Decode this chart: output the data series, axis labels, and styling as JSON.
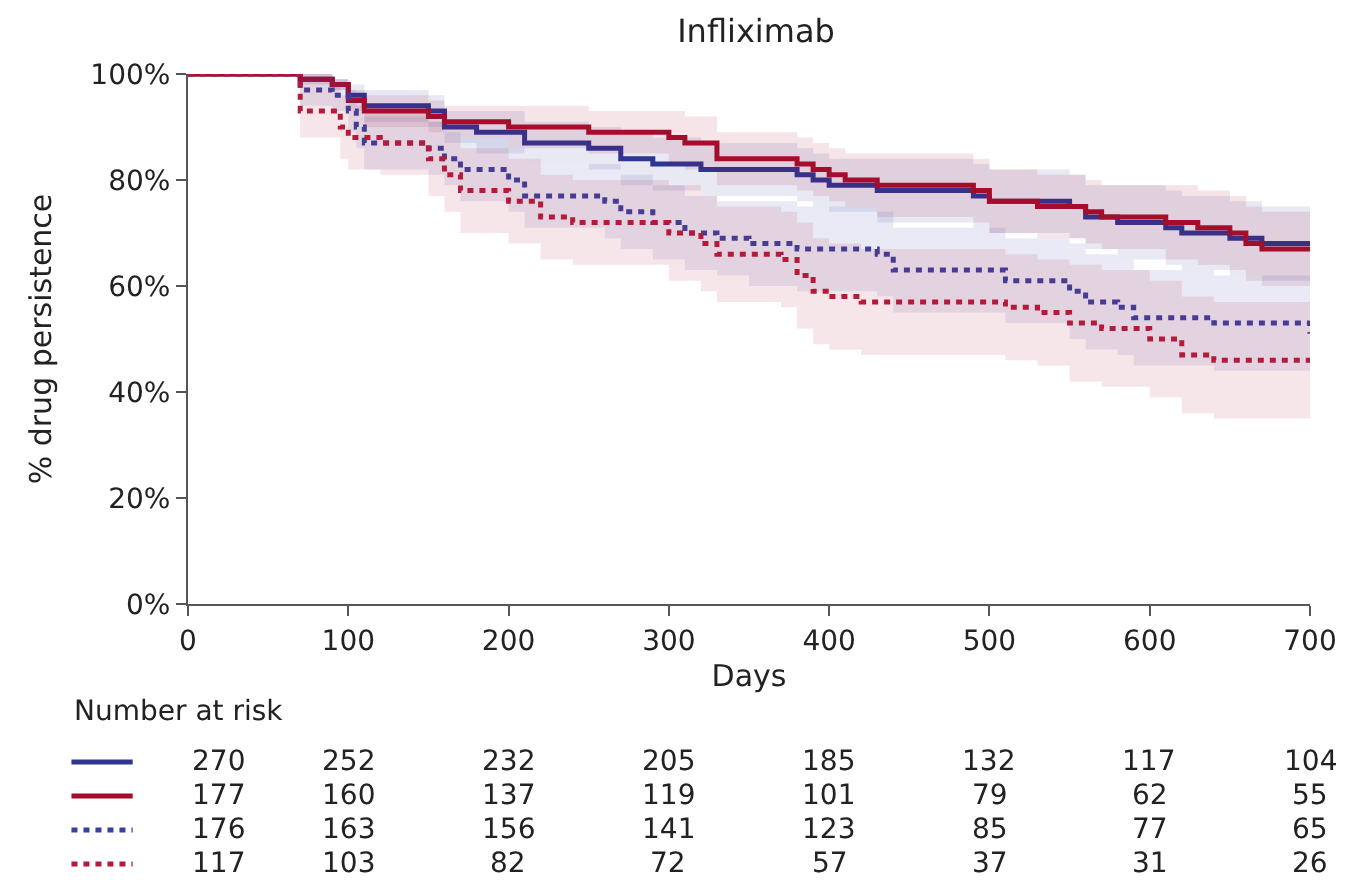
{
  "chart_data": {
    "type": "step",
    "title": "Infliximab",
    "xlabel": "Days",
    "ylabel": "% drug persistence",
    "xlim": [
      0,
      700
    ],
    "xticks": [
      0,
      100,
      200,
      300,
      400,
      500,
      600,
      700
    ],
    "ylim": [
      0,
      100
    ],
    "yticks": [
      {
        "value": 0,
        "label": "0%"
      },
      {
        "value": 20,
        "label": "20%"
      },
      {
        "value": 40,
        "label": "40%"
      },
      {
        "value": 60,
        "label": "60%"
      },
      {
        "value": 80,
        "label": "80%"
      },
      {
        "value": 100,
        "label": "100%"
      }
    ],
    "series": [
      {
        "color": "#2e3592",
        "line_style": "solid",
        "x": [
          0,
          70,
          90,
          100,
          110,
          150,
          160,
          180,
          210,
          250,
          270,
          290,
          320,
          380,
          390,
          400,
          430,
          480,
          490,
          500,
          550,
          560,
          580,
          610,
          620,
          650,
          670,
          700
        ],
        "values": [
          100,
          99,
          98,
          96,
          94,
          93,
          90,
          89,
          87,
          86,
          84,
          83,
          82,
          81,
          80,
          79,
          78,
          78,
          77,
          76,
          75,
          73,
          72,
          71,
          70,
          69,
          68,
          68
        ],
        "lower": [
          100,
          98,
          97,
          94,
          91,
          90,
          87,
          85,
          83,
          82,
          79,
          78,
          77,
          76,
          75,
          74,
          72,
          72,
          71,
          70,
          69,
          67,
          65,
          64,
          63,
          62,
          61,
          61
        ],
        "upper": [
          100,
          100,
          99,
          98,
          97,
          96,
          93,
          93,
          91,
          90,
          89,
          88,
          87,
          86,
          85,
          84,
          84,
          84,
          83,
          82,
          81,
          79,
          79,
          78,
          77,
          76,
          75,
          75
        ]
      },
      {
        "color": "#a50d2d",
        "line_style": "solid",
        "x": [
          0,
          70,
          90,
          100,
          110,
          150,
          160,
          200,
          250,
          300,
          310,
          330,
          380,
          390,
          400,
          410,
          430,
          490,
          500,
          530,
          560,
          570,
          610,
          630,
          650,
          660,
          670,
          700
        ],
        "values": [
          100,
          99,
          98,
          95,
          93,
          92,
          91,
          90,
          89,
          88,
          87,
          84,
          83,
          82,
          81,
          80,
          79,
          78,
          76,
          75,
          74,
          73,
          72,
          71,
          70,
          68,
          67,
          67
        ],
        "lower": [
          100,
          98,
          97,
          93,
          90,
          89,
          88,
          86,
          85,
          83,
          82,
          79,
          78,
          77,
          76,
          75,
          73,
          72,
          70,
          69,
          68,
          67,
          65,
          64,
          63,
          61,
          60,
          60
        ],
        "upper": [
          100,
          100,
          99,
          97,
          96,
          95,
          94,
          94,
          93,
          93,
          92,
          89,
          88,
          87,
          86,
          85,
          85,
          84,
          82,
          81,
          80,
          79,
          79,
          78,
          77,
          75,
          74,
          74
        ]
      },
      {
        "color": "#3a40a0",
        "line_style": "dotted",
        "x": [
          0,
          70,
          90,
          100,
          105,
          110,
          150,
          160,
          170,
          200,
          210,
          260,
          270,
          290,
          310,
          330,
          350,
          380,
          430,
          440,
          500,
          510,
          550,
          560,
          580,
          590,
          630,
          640,
          690,
          700
        ],
        "values": [
          100,
          97,
          96,
          93,
          90,
          87,
          86,
          84,
          82,
          80,
          77,
          76,
          74,
          72,
          70,
          69,
          68,
          67,
          66,
          63,
          63,
          61,
          59,
          57,
          56,
          54,
          54,
          53,
          53,
          51
        ],
        "lower": [
          100,
          94,
          93,
          89,
          86,
          82,
          81,
          79,
          76,
          74,
          71,
          69,
          67,
          65,
          63,
          62,
          60,
          59,
          58,
          55,
          55,
          53,
          50,
          48,
          47,
          45,
          45,
          44,
          44,
          42
        ],
        "upper": [
          100,
          100,
          99,
          97,
          94,
          92,
          91,
          89,
          88,
          86,
          83,
          83,
          81,
          79,
          77,
          76,
          76,
          75,
          74,
          71,
          71,
          69,
          68,
          66,
          65,
          63,
          63,
          62,
          62,
          60
        ]
      },
      {
        "color": "#b51a3a",
        "line_style": "dotted",
        "x": [
          0,
          70,
          95,
          100,
          120,
          150,
          160,
          170,
          200,
          220,
          240,
          300,
          320,
          330,
          370,
          380,
          390,
          400,
          420,
          510,
          530,
          550,
          570,
          600,
          620,
          640,
          700
        ],
        "values": [
          100,
          93,
          90,
          88,
          87,
          84,
          81,
          78,
          76,
          73,
          72,
          70,
          68,
          66,
          65,
          62,
          59,
          58,
          57,
          56,
          55,
          53,
          52,
          50,
          47,
          46,
          45
        ],
        "lower": [
          100,
          88,
          84,
          82,
          81,
          77,
          74,
          70,
          68,
          65,
          64,
          61,
          59,
          57,
          56,
          52,
          49,
          48,
          47,
          46,
          45,
          42,
          41,
          39,
          36,
          35,
          34
        ],
        "upper": [
          100,
          98,
          96,
          94,
          93,
          91,
          88,
          86,
          84,
          81,
          80,
          79,
          77,
          75,
          74,
          72,
          69,
          68,
          67,
          66,
          65,
          64,
          63,
          61,
          58,
          57,
          56
        ]
      }
    ],
    "annotations": [
      "Number at risk",
      "270",
      "252",
      "232",
      "205",
      "185",
      "132",
      "117",
      "104",
      "177",
      "160",
      "137",
      "119",
      "101",
      "79",
      "62",
      "55",
      "176",
      "163",
      "156",
      "141",
      "123",
      "85",
      "77",
      "65",
      "117",
      "103",
      "82",
      "72",
      "57",
      "37",
      "31",
      "26"
    ]
  }
}
